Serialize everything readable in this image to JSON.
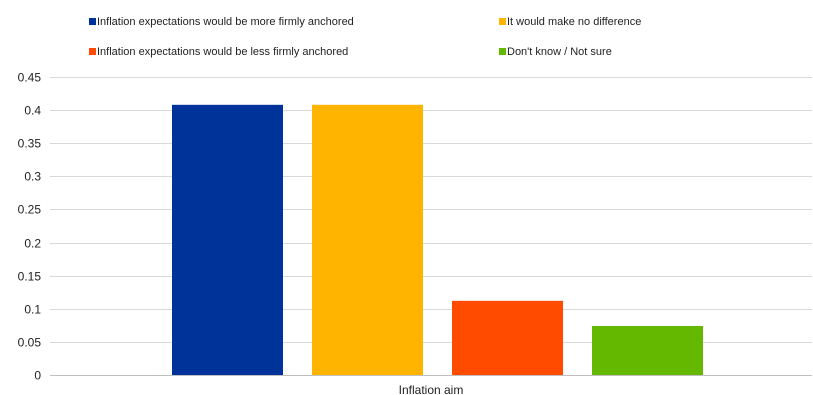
{
  "chart_data": {
    "type": "bar",
    "title": "",
    "xlabel": "",
    "ylabel": "",
    "categories": [
      "Inflation aim"
    ],
    "ylim": [
      0,
      0.45
    ],
    "yticks": [
      0,
      0.05,
      0.1,
      0.15,
      0.2,
      0.25,
      0.3,
      0.35,
      0.4,
      0.45
    ],
    "ytick_labels": [
      "0",
      "0.05",
      "0.1",
      "0.15",
      "0.2",
      "0.25",
      "0.3",
      "0.35",
      "0.4",
      "0.45"
    ],
    "grid": true,
    "legend_position": "top",
    "series": [
      {
        "name": "Inflation expectations would be more firmly anchored",
        "values": [
          0.408
        ],
        "color": "#003399"
      },
      {
        "name": "It would make no difference",
        "values": [
          0.408
        ],
        "color": "#ffb400"
      },
      {
        "name": "Inflation expectations would be less firmly anchored",
        "values": [
          0.112
        ],
        "color": "#ff4b00"
      },
      {
        "name": "Don't know / Not sure",
        "values": [
          0.074
        ],
        "color": "#65b800"
      }
    ]
  }
}
